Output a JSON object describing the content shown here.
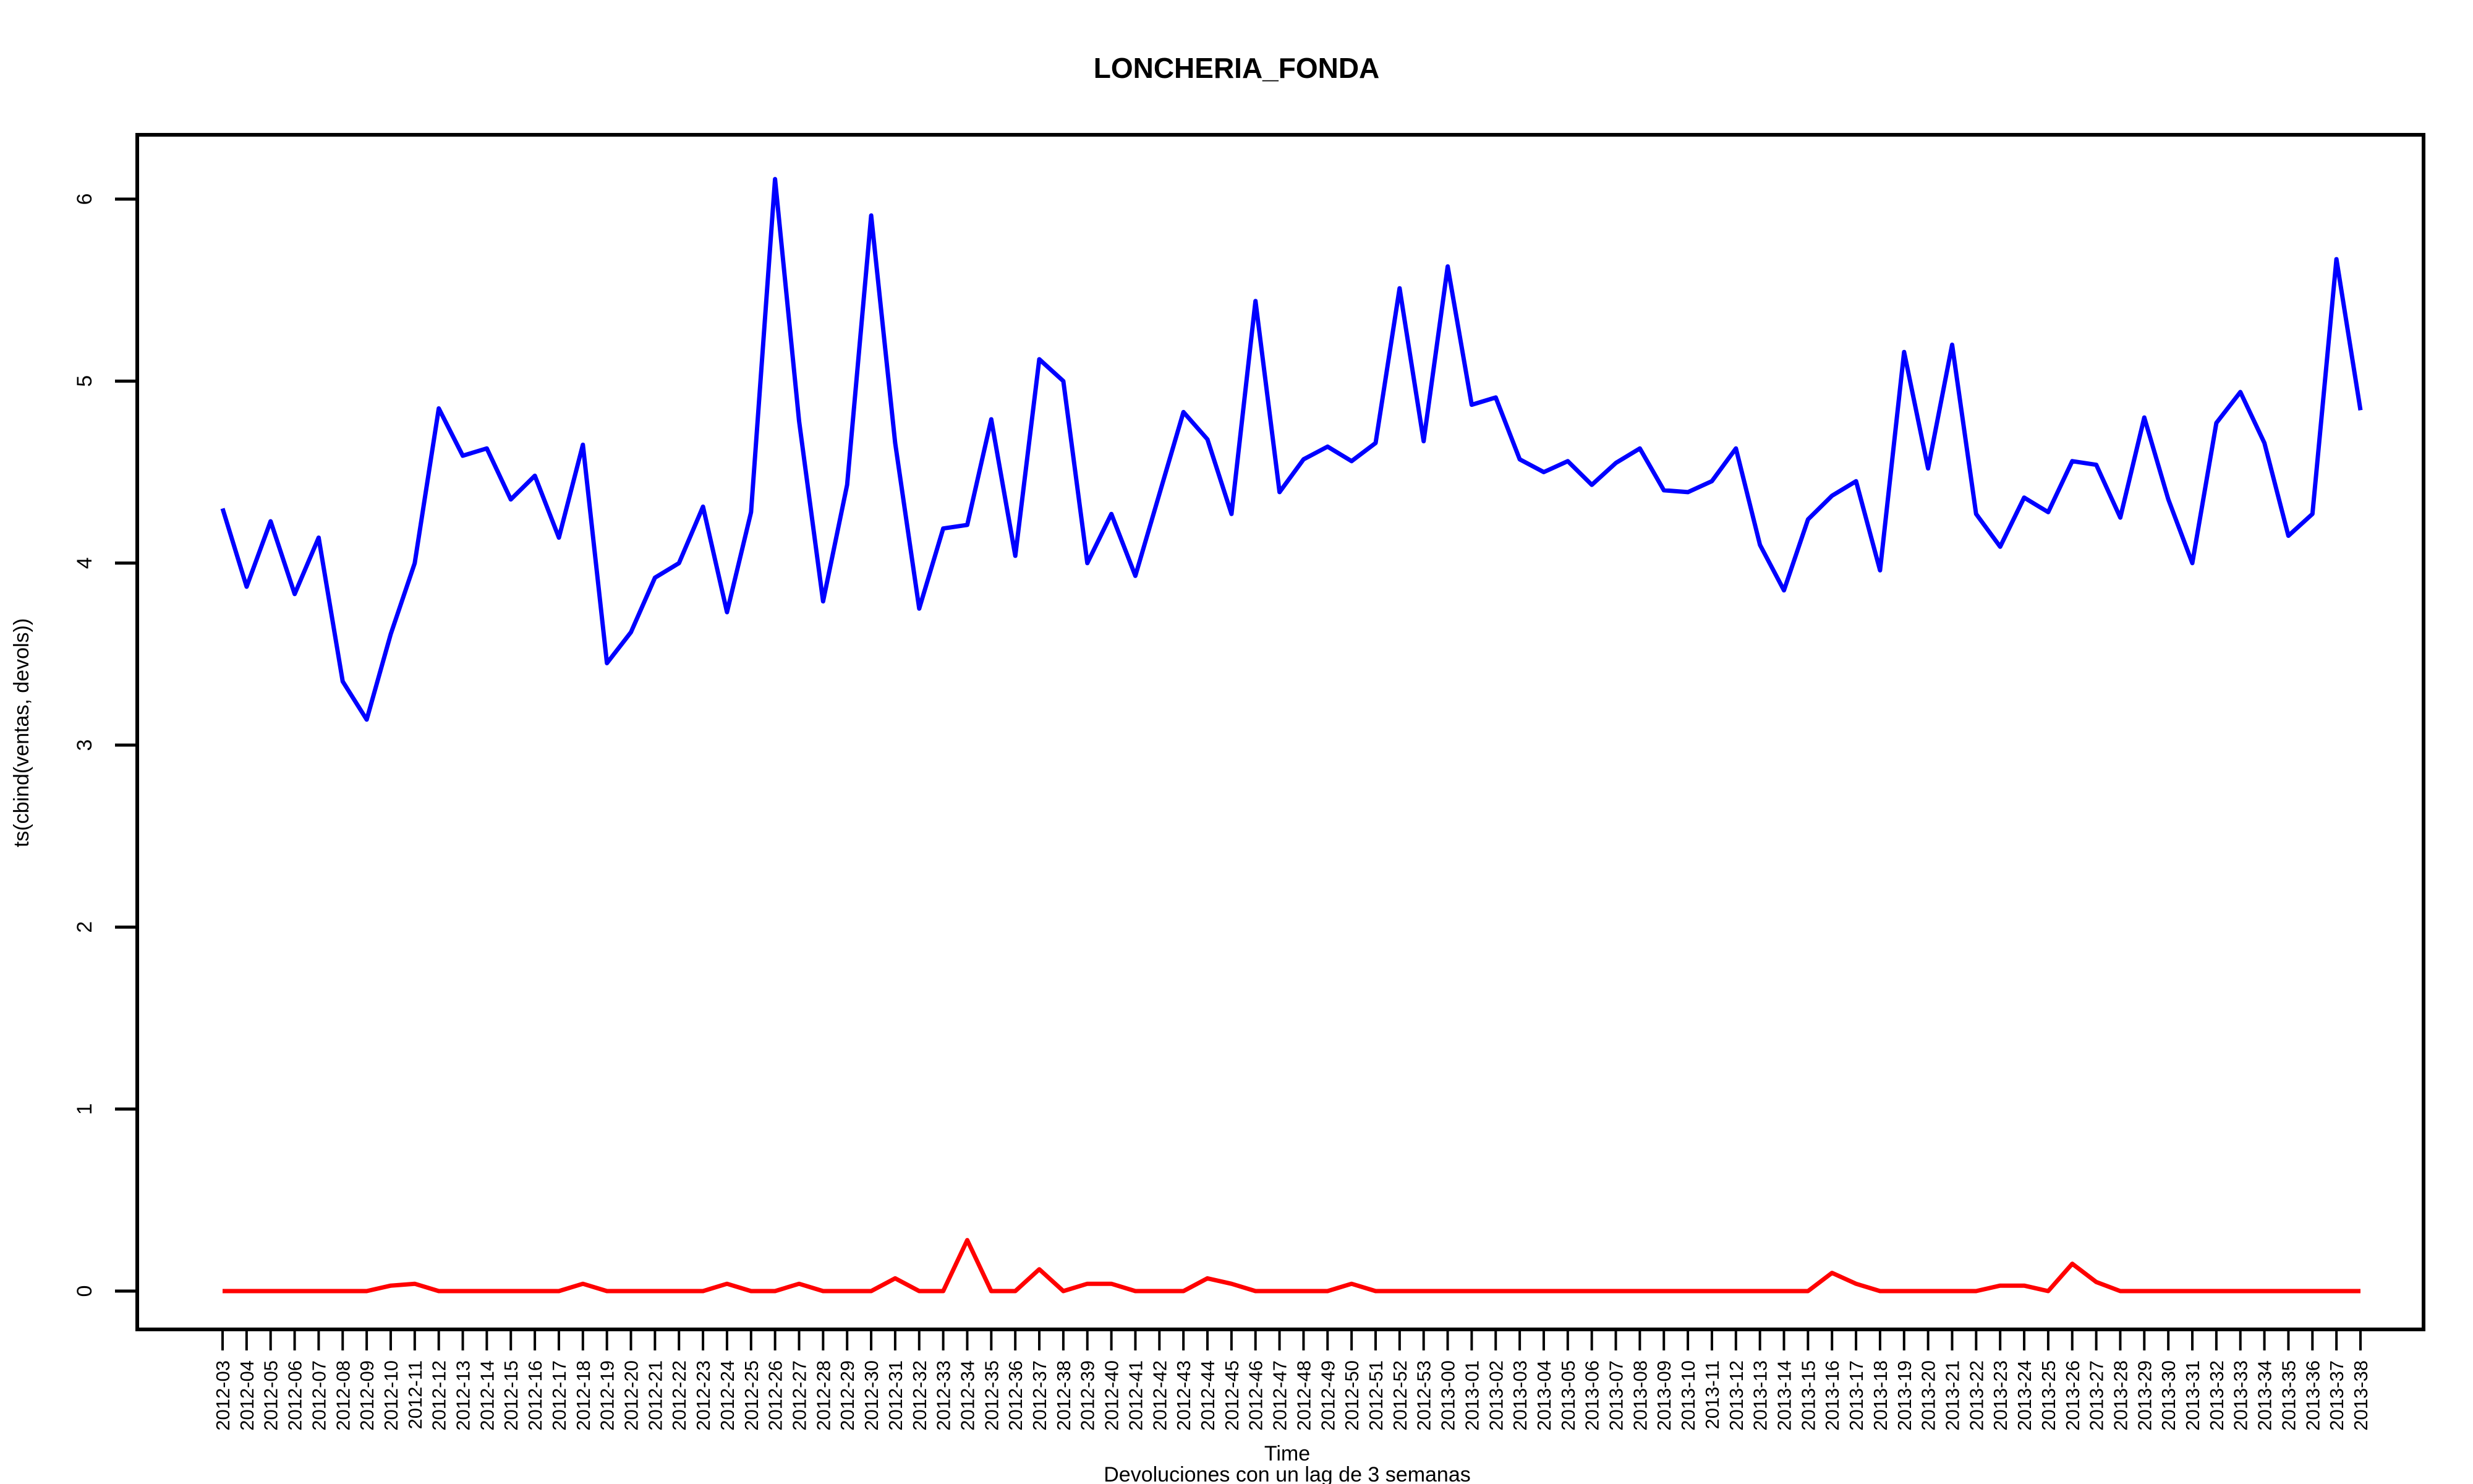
{
  "chart_data": {
    "type": "line",
    "title": "LONCHERIA_FONDA",
    "xlabel": "Time",
    "subtitle": "Devoluciones con un lag de 3 semanas",
    "ylabel": "ts(cbind(ventas, devols))",
    "ylim": [
      0,
      6
    ],
    "yticks": [
      "0",
      "1",
      "2",
      "3",
      "4",
      "5",
      "6"
    ],
    "grid": false,
    "legend": "none",
    "categories": [
      "2012-03",
      "2012-04",
      "2012-05",
      "2012-06",
      "2012-07",
      "2012-08",
      "2012-09",
      "2012-10",
      "2012-11",
      "2012-12",
      "2012-13",
      "2012-14",
      "2012-15",
      "2012-16",
      "2012-17",
      "2012-18",
      "2012-19",
      "2012-20",
      "2012-21",
      "2012-22",
      "2012-23",
      "2012-24",
      "2012-25",
      "2012-26",
      "2012-27",
      "2012-28",
      "2012-29",
      "2012-30",
      "2012-31",
      "2012-32",
      "2012-33",
      "2012-34",
      "2012-35",
      "2012-36",
      "2012-37",
      "2012-38",
      "2012-39",
      "2012-40",
      "2012-41",
      "2012-42",
      "2012-43",
      "2012-44",
      "2012-45",
      "2012-46",
      "2012-47",
      "2012-48",
      "2012-49",
      "2012-50",
      "2012-51",
      "2012-52",
      "2012-53",
      "2013-00",
      "2013-01",
      "2013-02",
      "2013-03",
      "2013-04",
      "2013-05",
      "2013-06",
      "2013-07",
      "2013-08",
      "2013-09",
      "2013-10",
      "2013-11",
      "2013-12",
      "2013-13",
      "2013-14",
      "2013-15",
      "2013-16",
      "2013-17",
      "2013-18",
      "2013-19",
      "2013-20",
      "2013-21",
      "2013-22",
      "2013-23",
      "2013-24",
      "2013-25",
      "2013-26",
      "2013-27",
      "2013-28",
      "2013-29",
      "2013-30",
      "2013-31",
      "2013-32",
      "2013-33",
      "2013-34",
      "2013-35",
      "2013-36",
      "2013-37",
      "2013-38"
    ],
    "series": [
      {
        "color": "#0000ff",
        "values": [
          4.3,
          3.87,
          4.23,
          3.83,
          4.14,
          3.35,
          3.14,
          3.61,
          4.0,
          4.85,
          4.59,
          4.63,
          4.35,
          4.48,
          4.14,
          4.65,
          3.45,
          3.62,
          3.92,
          4.0,
          4.31,
          3.73,
          4.28,
          6.11,
          4.78,
          3.79,
          4.43,
          5.91,
          4.66,
          3.75,
          4.19,
          4.21,
          4.79,
          4.04,
          5.12,
          5.0,
          4.0,
          4.27,
          3.93,
          4.38,
          4.83,
          4.68,
          4.27,
          5.44,
          4.39,
          4.57,
          4.64,
          4.56,
          4.66,
          5.51,
          4.67,
          5.63,
          4.87,
          4.91,
          4.57,
          4.5,
          4.56,
          4.43,
          4.55,
          4.63,
          4.4,
          4.39,
          4.45,
          4.63,
          4.1,
          3.85,
          4.24,
          4.37,
          4.45,
          3.96,
          5.16,
          4.52,
          5.2,
          4.27,
          4.09,
          4.36,
          4.28,
          4.56,
          4.54,
          4.25,
          4.8,
          4.35,
          4.0,
          4.77,
          4.94,
          4.66,
          4.15,
          4.27,
          5.67,
          4.84
        ]
      },
      {
        "color": "#ff0000",
        "values": [
          0,
          0,
          0,
          0,
          0,
          0,
          0,
          0.03,
          0.04,
          0,
          0,
          0,
          0,
          0,
          0,
          0.04,
          0,
          0,
          0,
          0,
          0,
          0.04,
          0,
          0,
          0.04,
          0,
          0,
          0,
          0.07,
          0,
          0,
          0.28,
          0,
          0,
          0.12,
          0,
          0.04,
          0.04,
          0,
          0,
          0,
          0.07,
          0.04,
          0,
          0,
          0,
          0,
          0.04,
          0,
          0,
          0,
          0,
          0,
          0,
          0,
          0,
          0,
          0,
          0,
          0,
          0,
          0,
          0,
          0,
          0,
          0,
          0,
          0.1,
          0.04,
          0,
          0,
          0,
          0,
          0,
          0.03,
          0.03,
          0,
          0.15,
          0.05,
          0,
          0,
          0,
          0,
          0,
          0,
          0,
          0,
          0,
          0,
          0
        ]
      }
    ]
  }
}
